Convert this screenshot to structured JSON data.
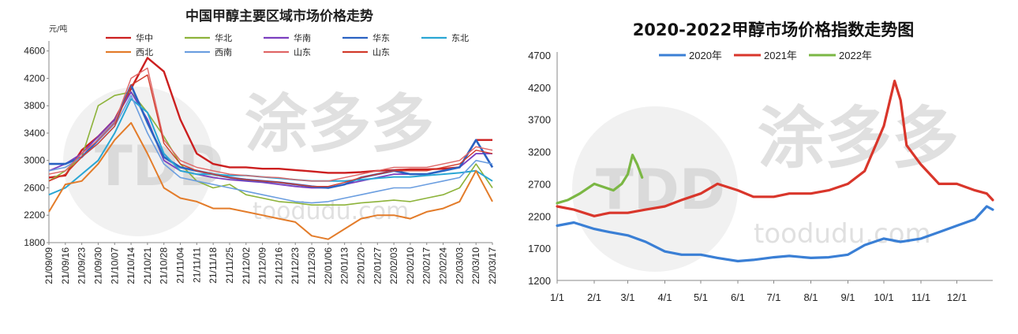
{
  "chart_data": [
    {
      "type": "line",
      "title": "中国甲醇主要区域市场价格走势",
      "ylabel": "元/吨",
      "ylim": [
        1800,
        4700
      ],
      "yticks": [
        1800,
        2200,
        2600,
        3000,
        3400,
        3800,
        4200,
        4600
      ],
      "categories": [
        "21/09/09",
        "21/09/16",
        "21/09/23",
        "21/09/30",
        "21/10/07",
        "21/10/14",
        "21/10/21",
        "21/10/28",
        "21/11/04",
        "21/11/11",
        "21/11/18",
        "21/11/25",
        "21/12/02",
        "21/12/09",
        "21/12/16",
        "21/12/23",
        "21/12/30",
        "22/01/06",
        "22/01/13",
        "22/01/20",
        "22/01/27",
        "22/02/03",
        "22/02/10",
        "22/02/17",
        "22/02/24",
        "22/03/03",
        "22/03/10",
        "22/03/17"
      ],
      "legend_position": "top",
      "series": [
        {
          "name": "华中",
          "color": "#cc1f1f",
          "width": 2.4,
          "values": [
            2750,
            2780,
            3150,
            3350,
            3600,
            4050,
            4500,
            4300,
            3600,
            3100,
            2950,
            2900,
            2900,
            2880,
            2880,
            2860,
            2840,
            2820,
            2820,
            2830,
            2850,
            2860,
            2870,
            2870,
            2880,
            2900,
            3300,
            3300
          ]
        },
        {
          "name": "华北",
          "color": "#8db33a",
          "width": 1.6,
          "values": [
            2700,
            2850,
            3050,
            3800,
            3950,
            4000,
            3700,
            3350,
            2950,
            2700,
            2600,
            2650,
            2500,
            2450,
            2400,
            2380,
            2350,
            2350,
            2350,
            2380,
            2400,
            2420,
            2400,
            2450,
            2500,
            2600,
            2950,
            2600
          ]
        },
        {
          "name": "华南",
          "color": "#7b3fbf",
          "width": 1.8,
          "values": [
            2850,
            2950,
            3100,
            3350,
            3600,
            4000,
            3600,
            3000,
            2850,
            2800,
            2750,
            2720,
            2700,
            2680,
            2650,
            2620,
            2600,
            2600,
            2650,
            2700,
            2750,
            2800,
            2800,
            2800,
            2850,
            2900,
            3100,
            3100
          ]
        },
        {
          "name": "华东",
          "color": "#2a62c2",
          "width": 2.6,
          "values": [
            2950,
            2950,
            3050,
            3300,
            3550,
            4100,
            3550,
            3050,
            2900,
            2850,
            2800,
            2750,
            2720,
            2700,
            2680,
            2650,
            2620,
            2600,
            2650,
            2750,
            2800,
            2850,
            2800,
            2800,
            2850,
            2900,
            3300,
            2900
          ]
        },
        {
          "name": "东北",
          "color": "#2aa6d4",
          "width": 2.0,
          "values": [
            2500,
            2600,
            2800,
            3000,
            3400,
            3900,
            3700,
            3100,
            2850,
            2800,
            2800,
            2780,
            2780,
            2760,
            2740,
            2720,
            2700,
            2700,
            2700,
            2720,
            2740,
            2760,
            2760,
            2780,
            2800,
            2820,
            2850,
            2700
          ]
        },
        {
          "name": "西北",
          "color": "#e37c2a",
          "width": 2.0,
          "values": [
            2250,
            2650,
            2700,
            2950,
            3300,
            3550,
            3100,
            2600,
            2450,
            2400,
            2300,
            2300,
            2250,
            2200,
            2150,
            2100,
            1900,
            1850,
            2000,
            2150,
            2200,
            2200,
            2150,
            2250,
            2300,
            2400,
            2850,
            2400
          ]
        },
        {
          "name": "西南",
          "color": "#6b9ee0",
          "width": 1.6,
          "values": [
            2850,
            2900,
            3050,
            3250,
            3500,
            3950,
            3400,
            2950,
            2750,
            2700,
            2650,
            2600,
            2550,
            2500,
            2450,
            2400,
            2380,
            2400,
            2450,
            2500,
            2550,
            2600,
            2600,
            2650,
            2700,
            2750,
            3000,
            2950
          ]
        },
        {
          "name": "山东",
          "color": "#e06666",
          "width": 1.4,
          "values": [
            2800,
            2850,
            3100,
            3300,
            3550,
            4200,
            4350,
            3300,
            3000,
            2900,
            2850,
            2800,
            2780,
            2760,
            2750,
            2720,
            2700,
            2700,
            2750,
            2800,
            2850,
            2900,
            2900,
            2900,
            2950,
            3000,
            3200,
            3150
          ]
        },
        {
          "name": "山东",
          "color": "#d23b2b",
          "width": 1.4,
          "values": [
            2700,
            2800,
            3050,
            3250,
            3500,
            4100,
            4250,
            3250,
            2950,
            2850,
            2800,
            2750,
            2720,
            2700,
            2680,
            2650,
            2620,
            2620,
            2680,
            2750,
            2800,
            2850,
            2850,
            2850,
            2900,
            2950,
            3150,
            3100
          ]
        }
      ],
      "watermark": [
        "TDD",
        "涂多多",
        "toodudu.com"
      ]
    },
    {
      "type": "line",
      "title": "2020-2022甲醇市场价格指数走势图",
      "xlabel": "",
      "ylabel": "",
      "ylim": [
        1200,
        4700
      ],
      "yticks": [
        1200,
        1700,
        2200,
        2700,
        3200,
        3700,
        4200,
        4700
      ],
      "categories": [
        "1/1",
        "2/1",
        "3/1",
        "4/1",
        "5/1",
        "6/1",
        "7/1",
        "8/1",
        "9/1",
        "10/1",
        "11/1",
        "12/1"
      ],
      "x_unit": "day_of_year",
      "legend_position": "top",
      "series": [
        {
          "name": "2020年",
          "color": "#3a7fd5",
          "width": 3.2,
          "x": [
            1,
            15,
            32,
            45,
            60,
            75,
            91,
            105,
            121,
            135,
            152,
            165,
            182,
            195,
            213,
            228,
            244,
            258,
            274,
            288,
            305,
            320,
            335,
            350,
            360,
            365
          ],
          "values": [
            2050,
            2100,
            2000,
            1950,
            1900,
            1800,
            1650,
            1600,
            1600,
            1550,
            1500,
            1520,
            1560,
            1580,
            1550,
            1560,
            1600,
            1750,
            1850,
            1800,
            1850,
            1950,
            2050,
            2150,
            2350,
            2300
          ]
        },
        {
          "name": "2021年",
          "color": "#d9362b",
          "width": 3.2,
          "x": [
            1,
            15,
            32,
            45,
            60,
            75,
            91,
            105,
            121,
            135,
            152,
            165,
            182,
            195,
            213,
            228,
            244,
            258,
            274,
            283,
            288,
            293,
            305,
            320,
            335,
            350,
            360,
            365
          ],
          "values": [
            2350,
            2300,
            2200,
            2250,
            2250,
            2300,
            2350,
            2450,
            2550,
            2700,
            2600,
            2500,
            2500,
            2550,
            2550,
            2600,
            2700,
            2900,
            3600,
            4300,
            4000,
            3300,
            3000,
            2700,
            2700,
            2600,
            2550,
            2450
          ]
        },
        {
          "name": "2022年",
          "color": "#7bb744",
          "width": 3.2,
          "x": [
            1,
            10,
            20,
            32,
            40,
            48,
            55,
            60,
            64,
            68,
            72
          ],
          "values": [
            2400,
            2450,
            2550,
            2700,
            2650,
            2600,
            2700,
            2850,
            3150,
            3000,
            2800
          ]
        }
      ],
      "watermark": [
        "TDD",
        "涂多多",
        "toodudu.com"
      ]
    }
  ]
}
